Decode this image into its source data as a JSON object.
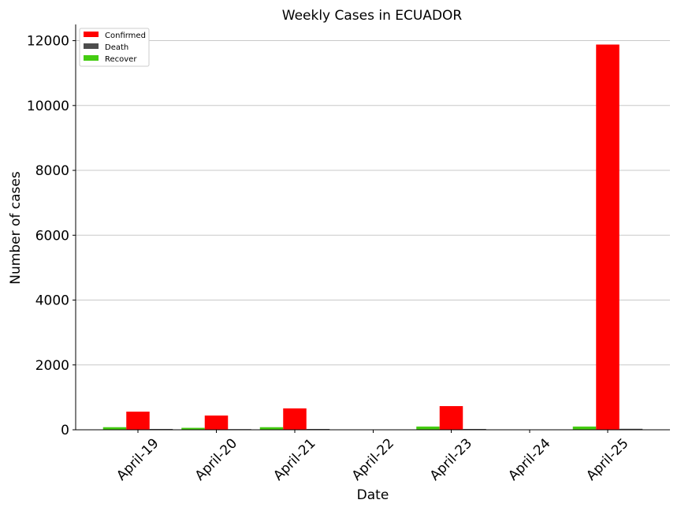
{
  "chart_data": {
    "type": "bar",
    "title": "Weekly Cases in ECUADOR",
    "xlabel": "Date",
    "ylabel": "Number of cases",
    "categories": [
      "April-19",
      "April-20",
      "April-21",
      "April-22",
      "April-23",
      "April-24",
      "April-25"
    ],
    "series": [
      {
        "name": "Confirmed",
        "color": "#ff0000",
        "values": [
          560,
          440,
          660,
          0,
          730,
          0,
          11880
        ]
      },
      {
        "name": "Death",
        "color": "#4d4d4d",
        "values": [
          25,
          20,
          25,
          0,
          25,
          0,
          30
        ]
      },
      {
        "name": "Recover",
        "color": "#44cc11",
        "values": [
          80,
          60,
          80,
          0,
          100,
          0,
          100
        ]
      }
    ],
    "ylim": [
      0,
      12500
    ],
    "yticks": [
      0,
      2000,
      4000,
      6000,
      8000,
      10000,
      12000
    ],
    "grid": "y",
    "legend": "top-left"
  }
}
